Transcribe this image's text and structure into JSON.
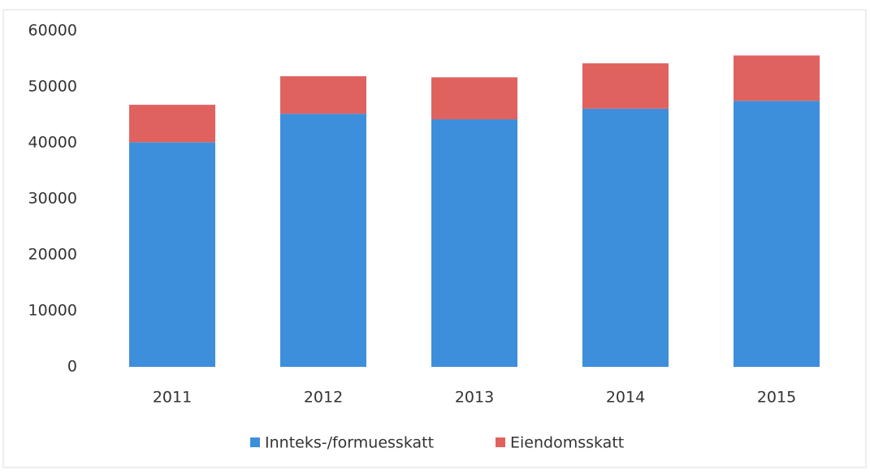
{
  "chart_data": {
    "type": "stacked_bar",
    "categories": [
      "2011",
      "2012",
      "2013",
      "2014",
      "2015"
    ],
    "series": [
      {
        "name": "Innteks-/formuesskatt",
        "color": "#3d8fdb",
        "values": [
          40100,
          45200,
          44200,
          46100,
          47500
        ]
      },
      {
        "name": "Eiendomsskatt",
        "color": "#e0625f",
        "values": [
          6700,
          6700,
          7500,
          8100,
          8100
        ]
      }
    ],
    "ylim": [
      0,
      60000
    ],
    "yticks": [
      0,
      10000,
      20000,
      30000,
      40000,
      50000,
      60000
    ],
    "grid": false,
    "legend": "bottom"
  }
}
